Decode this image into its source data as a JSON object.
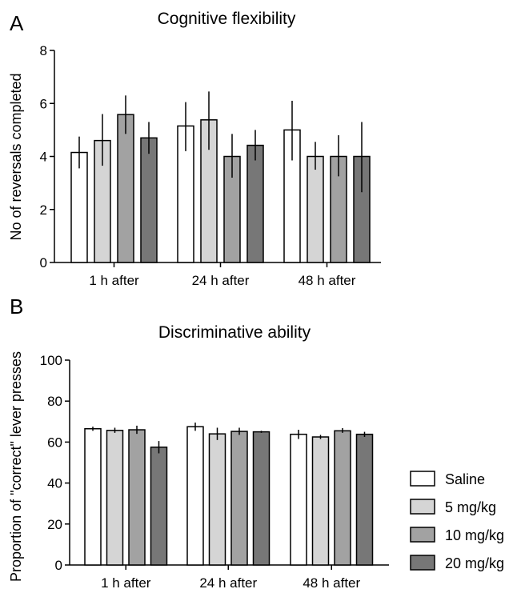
{
  "panels": [
    {
      "label": "A",
      "chart_data": {
        "type": "bar",
        "title": "Cognitive flexibility",
        "xlabel": "",
        "ylabel": "No of reversals completed",
        "categories": [
          "1 h after",
          "24 h after",
          "48 h after"
        ],
        "ylim": [
          0,
          8
        ],
        "yticks": [
          0,
          2,
          4,
          6,
          8
        ],
        "grid": false,
        "series": [
          {
            "name": "Saline",
            "color": "#ffffff",
            "values": [
              4.15,
              5.15,
              5.0
            ],
            "err_low": [
              3.55,
              4.2,
              3.85
            ],
            "err_high": [
              4.75,
              6.05,
              6.1
            ]
          },
          {
            "name": "5 mg/kg",
            "color": "#d5d5d5",
            "values": [
              4.6,
              5.38,
              4.0
            ],
            "err_low": [
              3.65,
              4.25,
              3.5
            ],
            "err_high": [
              5.6,
              6.45,
              4.55
            ]
          },
          {
            "name": "10 mg/kg",
            "color": "#a2a2a2",
            "values": [
              5.58,
              4.0,
              4.0
            ],
            "err_low": [
              4.85,
              3.2,
              3.25
            ],
            "err_high": [
              6.3,
              4.85,
              4.8
            ]
          },
          {
            "name": "20 mg/kg",
            "color": "#777777",
            "values": [
              4.7,
              4.42,
              4.0
            ],
            "err_low": [
              4.1,
              3.85,
              2.65
            ],
            "err_high": [
              5.3,
              5.0,
              5.3
            ]
          }
        ]
      }
    },
    {
      "label": "B",
      "chart_data": {
        "type": "bar",
        "title": "Discriminative ability",
        "xlabel": "",
        "ylabel": "Proportion of \"correct\" lever presses",
        "categories": [
          "1 h after",
          "24 h after",
          "48 h after"
        ],
        "ylim": [
          0,
          100
        ],
        "yticks": [
          0,
          20,
          40,
          60,
          80,
          100
        ],
        "grid": false,
        "legend_position": "right",
        "series": [
          {
            "name": "Saline",
            "color": "#ffffff",
            "values": [
              66.5,
              67.5,
              63.8
            ],
            "err_low": [
              65.5,
              65.5,
              61.5
            ],
            "err_high": [
              67.5,
              69.5,
              66.0
            ]
          },
          {
            "name": "5 mg/kg",
            "color": "#d5d5d5",
            "values": [
              65.7,
              64.0,
              62.5
            ],
            "err_low": [
              64.5,
              61.0,
              61.5
            ],
            "err_high": [
              67.0,
              67.0,
              63.5
            ]
          },
          {
            "name": "10 mg/kg",
            "color": "#a2a2a2",
            "values": [
              66.0,
              65.2,
              65.5
            ],
            "err_low": [
              64.0,
              63.5,
              64.5
            ],
            "err_high": [
              68.0,
              67.0,
              66.8
            ]
          },
          {
            "name": "20 mg/kg",
            "color": "#777777",
            "values": [
              57.5,
              65.0,
              63.8
            ],
            "err_low": [
              54.5,
              64.5,
              62.5
            ],
            "err_high": [
              60.5,
              65.5,
              65.0
            ]
          }
        ]
      }
    }
  ],
  "legend": {
    "items": [
      {
        "label": "Saline",
        "color": "#ffffff"
      },
      {
        "label": "5 mg/kg",
        "color": "#d5d5d5"
      },
      {
        "label": "10 mg/kg",
        "color": "#a2a2a2"
      },
      {
        "label": "20 mg/kg",
        "color": "#777777"
      }
    ]
  }
}
